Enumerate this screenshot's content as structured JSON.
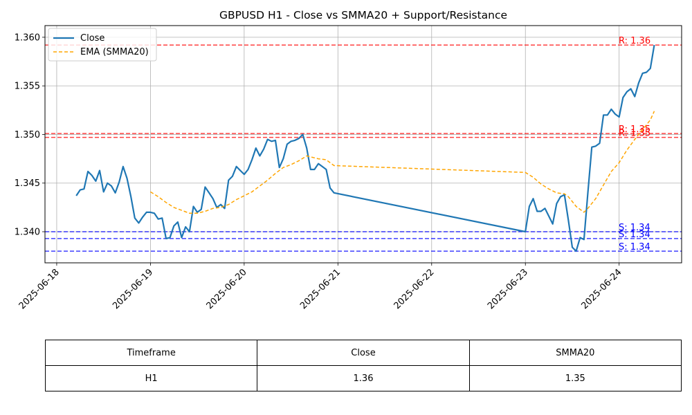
{
  "chart_data": {
    "type": "line",
    "title": "GBPUSD H1 - Close vs SMMA20 + Support/Resistance",
    "xlabel": "",
    "ylabel": "",
    "xlim": [
      "2025-06-17T21:00",
      "2025-06-24T16:00"
    ],
    "ylim": [
      1.3368,
      1.3612
    ],
    "grid": true,
    "legend_position": "top-left",
    "x_ticks": [
      "2025-06-18",
      "2025-06-19",
      "2025-06-20",
      "2025-06-21",
      "2025-06-22",
      "2025-06-23",
      "2025-06-24"
    ],
    "y_ticks": [
      "1.340",
      "1.345",
      "1.350",
      "1.355",
      "1.360"
    ],
    "series": [
      {
        "name": "Close",
        "color": "#1f77b4",
        "style": "solid",
        "points": [
          [
            "2025-06-18T05:00",
            1.3437
          ],
          [
            "2025-06-18T06:00",
            1.3443
          ],
          [
            "2025-06-18T07:00",
            1.3444
          ],
          [
            "2025-06-18T08:00",
            1.3462
          ],
          [
            "2025-06-18T09:00",
            1.3458
          ],
          [
            "2025-06-18T10:00",
            1.3452
          ],
          [
            "2025-06-18T11:00",
            1.3463
          ],
          [
            "2025-06-18T12:00",
            1.3441
          ],
          [
            "2025-06-18T13:00",
            1.345
          ],
          [
            "2025-06-18T14:00",
            1.3447
          ],
          [
            "2025-06-18T15:00",
            1.344
          ],
          [
            "2025-06-18T16:00",
            1.3451
          ],
          [
            "2025-06-18T17:00",
            1.3467
          ],
          [
            "2025-06-18T18:00",
            1.3455
          ],
          [
            "2025-06-18T19:00",
            1.3436
          ],
          [
            "2025-06-18T20:00",
            1.3414
          ],
          [
            "2025-06-18T21:00",
            1.3409
          ],
          [
            "2025-06-18T22:00",
            1.3415
          ],
          [
            "2025-06-18T23:00",
            1.342
          ],
          [
            "2025-06-19T00:00",
            1.342
          ],
          [
            "2025-06-19T01:00",
            1.3419
          ],
          [
            "2025-06-19T02:00",
            1.3413
          ],
          [
            "2025-06-19T03:00",
            1.3414
          ],
          [
            "2025-06-19T04:00",
            1.3393
          ],
          [
            "2025-06-19T05:00",
            1.3394
          ],
          [
            "2025-06-19T06:00",
            1.3406
          ],
          [
            "2025-06-19T07:00",
            1.341
          ],
          [
            "2025-06-19T08:00",
            1.3394
          ],
          [
            "2025-06-19T09:00",
            1.3405
          ],
          [
            "2025-06-19T10:00",
            1.34
          ],
          [
            "2025-06-19T11:00",
            1.3426
          ],
          [
            "2025-06-19T12:00",
            1.342
          ],
          [
            "2025-06-19T13:00",
            1.3423
          ],
          [
            "2025-06-19T14:00",
            1.3446
          ],
          [
            "2025-06-19T15:00",
            1.344
          ],
          [
            "2025-06-19T16:00",
            1.3434
          ],
          [
            "2025-06-19T17:00",
            1.3425
          ],
          [
            "2025-06-19T18:00",
            1.3428
          ],
          [
            "2025-06-19T19:00",
            1.3424
          ],
          [
            "2025-06-19T20:00",
            1.3453
          ],
          [
            "2025-06-19T21:00",
            1.3457
          ],
          [
            "2025-06-19T22:00",
            1.3467
          ],
          [
            "2025-06-19T23:00",
            1.3463
          ],
          [
            "2025-06-20T00:00",
            1.3459
          ],
          [
            "2025-06-20T01:00",
            1.3464
          ],
          [
            "2025-06-20T02:00",
            1.3474
          ],
          [
            "2025-06-20T03:00",
            1.3486
          ],
          [
            "2025-06-20T04:00",
            1.3478
          ],
          [
            "2025-06-20T05:00",
            1.3485
          ],
          [
            "2025-06-20T06:00",
            1.3495
          ],
          [
            "2025-06-20T07:00",
            1.3493
          ],
          [
            "2025-06-20T08:00",
            1.3494
          ],
          [
            "2025-06-20T09:00",
            1.3466
          ],
          [
            "2025-06-20T10:00",
            1.3475
          ],
          [
            "2025-06-20T11:00",
            1.349
          ],
          [
            "2025-06-20T12:00",
            1.3493
          ],
          [
            "2025-06-20T13:00",
            1.3494
          ],
          [
            "2025-06-20T14:00",
            1.3496
          ],
          [
            "2025-06-20T15:00",
            1.35
          ],
          [
            "2025-06-20T16:00",
            1.3486
          ],
          [
            "2025-06-20T17:00",
            1.3464
          ],
          [
            "2025-06-20T18:00",
            1.3464
          ],
          [
            "2025-06-20T19:00",
            1.347
          ],
          [
            "2025-06-20T20:00",
            1.3467
          ],
          [
            "2025-06-20T21:00",
            1.3464
          ],
          [
            "2025-06-20T22:00",
            1.3445
          ],
          [
            "2025-06-20T23:00",
            1.344
          ],
          [
            "2025-06-23T00:00",
            1.34
          ],
          [
            "2025-06-23T01:00",
            1.3426
          ],
          [
            "2025-06-23T02:00",
            1.3434
          ],
          [
            "2025-06-23T03:00",
            1.3421
          ],
          [
            "2025-06-23T04:00",
            1.3421
          ],
          [
            "2025-06-23T05:00",
            1.3424
          ],
          [
            "2025-06-23T06:00",
            1.3416
          ],
          [
            "2025-06-23T07:00",
            1.3408
          ],
          [
            "2025-06-23T08:00",
            1.3429
          ],
          [
            "2025-06-23T09:00",
            1.3436
          ],
          [
            "2025-06-23T10:00",
            1.3438
          ],
          [
            "2025-06-23T11:00",
            1.3412
          ],
          [
            "2025-06-23T12:00",
            1.3384
          ],
          [
            "2025-06-23T13:00",
            1.338
          ],
          [
            "2025-06-23T14:00",
            1.3394
          ],
          [
            "2025-06-23T15:00",
            1.3392
          ],
          [
            "2025-06-23T16:00",
            1.344
          ],
          [
            "2025-06-23T17:00",
            1.3487
          ],
          [
            "2025-06-23T18:00",
            1.3488
          ],
          [
            "2025-06-23T19:00",
            1.3491
          ],
          [
            "2025-06-23T20:00",
            1.352
          ],
          [
            "2025-06-23T21:00",
            1.352
          ],
          [
            "2025-06-23T22:00",
            1.3526
          ],
          [
            "2025-06-23T23:00",
            1.3521
          ],
          [
            "2025-06-24T00:00",
            1.3518
          ],
          [
            "2025-06-24T01:00",
            1.3538
          ],
          [
            "2025-06-24T02:00",
            1.3544
          ],
          [
            "2025-06-24T03:00",
            1.3547
          ],
          [
            "2025-06-24T04:00",
            1.3539
          ],
          [
            "2025-06-24T05:00",
            1.3553
          ],
          [
            "2025-06-24T06:00",
            1.3563
          ],
          [
            "2025-06-24T07:00",
            1.3564
          ],
          [
            "2025-06-24T08:00",
            1.3568
          ],
          [
            "2025-06-24T09:00",
            1.3592
          ]
        ]
      },
      {
        "name": "EMA (SMMA20)",
        "color": "#ffa500",
        "style": "dashed",
        "points": [
          [
            "2025-06-19T00:00",
            1.3441
          ],
          [
            "2025-06-19T02:00",
            1.3436
          ],
          [
            "2025-06-19T04:00",
            1.343
          ],
          [
            "2025-06-19T06:00",
            1.3425
          ],
          [
            "2025-06-19T08:00",
            1.3422
          ],
          [
            "2025-06-19T10:00",
            1.3419
          ],
          [
            "2025-06-19T12:00",
            1.3419
          ],
          [
            "2025-06-19T14:00",
            1.3421
          ],
          [
            "2025-06-19T16:00",
            1.3424
          ],
          [
            "2025-06-19T18:00",
            1.3425
          ],
          [
            "2025-06-19T20:00",
            1.3428
          ],
          [
            "2025-06-19T22:00",
            1.3433
          ],
          [
            "2025-06-20T00:00",
            1.3437
          ],
          [
            "2025-06-20T02:00",
            1.3441
          ],
          [
            "2025-06-20T04:00",
            1.3447
          ],
          [
            "2025-06-20T06:00",
            1.3453
          ],
          [
            "2025-06-20T08:00",
            1.346
          ],
          [
            "2025-06-20T10:00",
            1.3466
          ],
          [
            "2025-06-20T12:00",
            1.3469
          ],
          [
            "2025-06-20T14:00",
            1.3473
          ],
          [
            "2025-06-20T16:00",
            1.3478
          ],
          [
            "2025-06-20T17:00",
            1.3477
          ],
          [
            "2025-06-20T19:00",
            1.3475
          ],
          [
            "2025-06-20T21:00",
            1.3474
          ],
          [
            "2025-06-20T23:00",
            1.3468
          ],
          [
            "2025-06-23T00:00",
            1.3461
          ],
          [
            "2025-06-23T02:00",
            1.3456
          ],
          [
            "2025-06-23T04:00",
            1.3449
          ],
          [
            "2025-06-23T06:00",
            1.3444
          ],
          [
            "2025-06-23T08:00",
            1.344
          ],
          [
            "2025-06-23T10:00",
            1.3439
          ],
          [
            "2025-06-23T11:00",
            1.3436
          ],
          [
            "2025-06-23T12:00",
            1.3431
          ],
          [
            "2025-06-23T13:00",
            1.3426
          ],
          [
            "2025-06-23T14:00",
            1.3423
          ],
          [
            "2025-06-23T15:00",
            1.342
          ],
          [
            "2025-06-23T16:00",
            1.3424
          ],
          [
            "2025-06-23T18:00",
            1.3434
          ],
          [
            "2025-06-23T20:00",
            1.3448
          ],
          [
            "2025-06-23T22:00",
            1.3462
          ],
          [
            "2025-06-24T00:00",
            1.3471
          ],
          [
            "2025-06-24T02:00",
            1.3484
          ],
          [
            "2025-06-24T04:00",
            1.3495
          ],
          [
            "2025-06-24T06:00",
            1.3505
          ],
          [
            "2025-06-24T08:00",
            1.3515
          ],
          [
            "2025-06-24T09:00",
            1.3524
          ]
        ]
      }
    ],
    "levels": [
      {
        "kind": "resistance",
        "label": "R: 1.36",
        "value": 1.3592,
        "color": "#ff0000"
      },
      {
        "kind": "resistance",
        "label": "R: 1.35",
        "value": 1.3501,
        "color": "#ff0000"
      },
      {
        "kind": "resistance",
        "label": "R: 1.35",
        "value": 1.3497,
        "color": "#ff0000"
      },
      {
        "kind": "support",
        "label": "S: 1.34",
        "value": 1.34,
        "color": "#0000ff"
      },
      {
        "kind": "support",
        "label": "S: 1.34",
        "value": 1.3393,
        "color": "#0000ff"
      },
      {
        "kind": "support",
        "label": "S: 1.34",
        "value": 1.338,
        "color": "#0000ff"
      }
    ]
  },
  "table": {
    "headers": [
      "Timeframe",
      "Close",
      "SMMA20"
    ],
    "rows": [
      [
        "H1",
        "1.36",
        "1.35"
      ]
    ]
  }
}
